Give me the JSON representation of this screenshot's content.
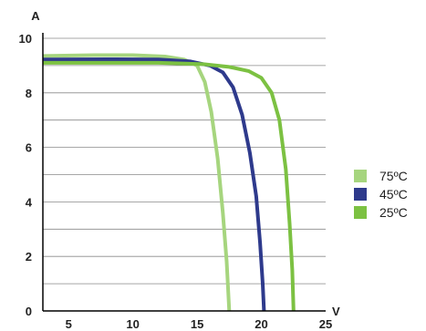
{
  "chart_data": {
    "type": "line",
    "title": "",
    "xlabel": "V",
    "ylabel": "A",
    "xlim": [
      3,
      25
    ],
    "ylim": [
      0,
      10
    ],
    "x_ticks": [
      "5",
      "10",
      "15",
      "20",
      "25"
    ],
    "y_ticks": [
      "0",
      "2",
      "4",
      "6",
      "8",
      "10"
    ],
    "grid": "horizontal",
    "legend": "right",
    "series": [
      {
        "name": "75ºC",
        "color": "#a6d57e",
        "points": [
          [
            3,
            9.35
          ],
          [
            7,
            9.38
          ],
          [
            10,
            9.38
          ],
          [
            12.5,
            9.33
          ],
          [
            14,
            9.22
          ],
          [
            15,
            9.0
          ],
          [
            15.6,
            8.4
          ],
          [
            16.1,
            7.3
          ],
          [
            16.6,
            5.6
          ],
          [
            17.0,
            3.6
          ],
          [
            17.3,
            1.8
          ],
          [
            17.5,
            0
          ]
        ]
      },
      {
        "name": "45ºC",
        "color": "#2e3a8c",
        "points": [
          [
            3,
            9.22
          ],
          [
            8,
            9.23
          ],
          [
            12,
            9.22
          ],
          [
            14.5,
            9.15
          ],
          [
            16,
            9.0
          ],
          [
            17,
            8.75
          ],
          [
            17.8,
            8.2
          ],
          [
            18.5,
            7.2
          ],
          [
            19.1,
            5.8
          ],
          [
            19.6,
            4.2
          ],
          [
            19.9,
            2.5
          ],
          [
            20.1,
            1.0
          ],
          [
            20.2,
            0
          ]
        ]
      },
      {
        "name": "25ºC",
        "color": "#7cc142",
        "points": [
          [
            3,
            9.1
          ],
          [
            8,
            9.1
          ],
          [
            12,
            9.1
          ],
          [
            15.5,
            9.05
          ],
          [
            17.5,
            8.95
          ],
          [
            19.0,
            8.8
          ],
          [
            20.0,
            8.55
          ],
          [
            20.8,
            8.0
          ],
          [
            21.4,
            7.0
          ],
          [
            21.9,
            5.2
          ],
          [
            22.2,
            3.2
          ],
          [
            22.4,
            1.5
          ],
          [
            22.5,
            0
          ]
        ]
      }
    ]
  }
}
